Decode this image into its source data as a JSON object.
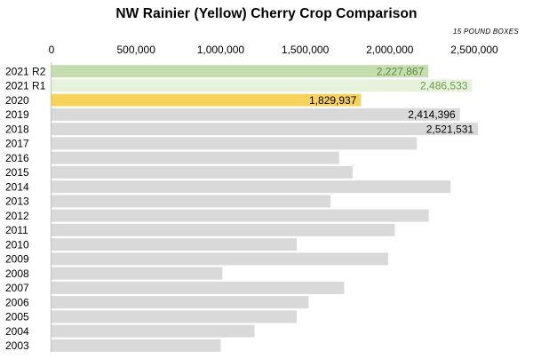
{
  "chart_data": {
    "type": "bar",
    "orientation": "horizontal",
    "title": "NW Rainier (Yellow) Cherry Crop Comparison",
    "units_note": "15 POUND BOXES",
    "xlabel": "",
    "ylabel": "",
    "xlim": [
      0,
      2500000
    ],
    "x_ticks": [
      0,
      500000,
      1000000,
      1500000,
      2000000,
      2500000
    ],
    "x_tick_labels": [
      "0",
      "500,000",
      "1,000,000",
      "1,500,000",
      "2,000,000",
      "2,500,000"
    ],
    "x_axis_position": "top",
    "grid": false,
    "legend": "none",
    "categories": [
      "2021 R2",
      "2021 R1",
      "2020",
      "2019",
      "2018",
      "2017",
      "2016",
      "2015",
      "2014",
      "2013",
      "2012",
      "2011",
      "2010",
      "2009",
      "2008",
      "2007",
      "2006",
      "2005",
      "2004",
      "2003"
    ],
    "values": [
      2227867,
      2486533,
      1829937,
      2414396,
      2521531,
      2160000,
      1700000,
      1780000,
      2360000,
      1650000,
      2230000,
      2030000,
      1450000,
      1990000,
      1010000,
      1730000,
      1520000,
      1450000,
      1200000,
      1000000
    ],
    "value_labels": [
      "2,227,867",
      "2,486,533",
      "1,829,937",
      "2,414,396",
      "2,521,531",
      "",
      "",
      "",
      "",
      "",
      "",
      "",
      "",
      "",
      "",
      "",
      "",
      "",
      "",
      ""
    ],
    "bar_colors": [
      "#c4deb0",
      "#e6f2db",
      "#f6d35c",
      "#d9d9d9",
      "#d9d9d9",
      "#d9d9d9",
      "#d9d9d9",
      "#d9d9d9",
      "#d9d9d9",
      "#d9d9d9",
      "#d9d9d9",
      "#d9d9d9",
      "#d9d9d9",
      "#d9d9d9",
      "#d9d9d9",
      "#d9d9d9",
      "#d9d9d9",
      "#d9d9d9",
      "#d9d9d9",
      "#d9d9d9"
    ],
    "label_colors": [
      "#5f8a3c",
      "#6f9a4c",
      "#000000",
      "#000000",
      "#000000",
      "#000000",
      "#000000",
      "#000000",
      "#000000",
      "#000000",
      "#000000",
      "#000000",
      "#000000",
      "#000000",
      "#000000",
      "#000000",
      "#000000",
      "#000000",
      "#000000",
      "#000000"
    ]
  }
}
